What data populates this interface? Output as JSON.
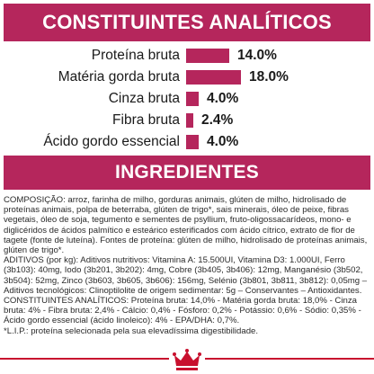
{
  "analytics": {
    "title": "CONSTITUINTES ANALÍTICOS",
    "items": [
      {
        "label": "Proteína bruta",
        "value": "14.0%",
        "percent": 14.0
      },
      {
        "label": "Matéria gorda bruta",
        "value": "18.0%",
        "percent": 18.0
      },
      {
        "label": "Cinza bruta",
        "value": "4.0%",
        "percent": 4.0
      },
      {
        "label": "Fibra bruta",
        "value": "2.4%",
        "percent": 2.4
      },
      {
        "label": "Ácido gordo essencial",
        "value": "4.0%",
        "percent": 4.0
      }
    ]
  },
  "ingredients": {
    "title": "INGREDIENTES",
    "paragraphs": [
      "COMPOSIÇÃO: arroz, farinha de milho, gorduras animais, glúten de milho, hidrolisado de proteínas animais, polpa de beterraba, glúten de trigo*, sais minerais, óleo de peixe, fibras vegetais, óleo de soja, tegumento e sementes de psyllium, fruto-oligossacarídeos, mono- e diglicéridos de ácidos palmítico e esteárico esterificados com ácido cítrico, extrato de flor de tagete (fonte de luteína). Fontes de proteína: glúten de milho, hidrolisado de proteínas animais, glúten de trigo*.",
      "ADITIVOS (por kg): Aditivos nutritivos: Vitamina A: 15.500UI, Vitamina D3: 1.000UI, Ferro (3b103): 40mg, Iodo (3b201, 3b202): 4mg, Cobre (3b405, 3b406): 12mg, Manganésio (3b502, 3b504): 52mg, Zinco (3b603, 3b605, 3b606): 156mg, Selénio (3b801, 3b811, 3b812): 0,05mg – Aditivos tecnológicos: Clinoptilolite de origem sedimentar: 5g – Conservantes – Antioxidantes.",
      "CONSTITUINTES ANALÍTICOS: Proteína bruta: 14,0% - Matéria gorda bruta: 18,0% - Cinza bruta: 4% - Fibra bruta: 2,4% - Cálcio: 0,4% - Fósforo: 0,2% - Potássio: 0,6% - Sódio: 0,35% - Ácido gordo essencial (ácido linoleico): 4% - EPA/DHA: 0,7%.",
      "*L.I.P.: proteína selecionada pela sua elevadíssima digestibilidade."
    ]
  },
  "brand": {
    "logo_icon": "royal-canin-crown-icon",
    "accent_color": "#b5265c",
    "line_color": "#c8102e"
  }
}
